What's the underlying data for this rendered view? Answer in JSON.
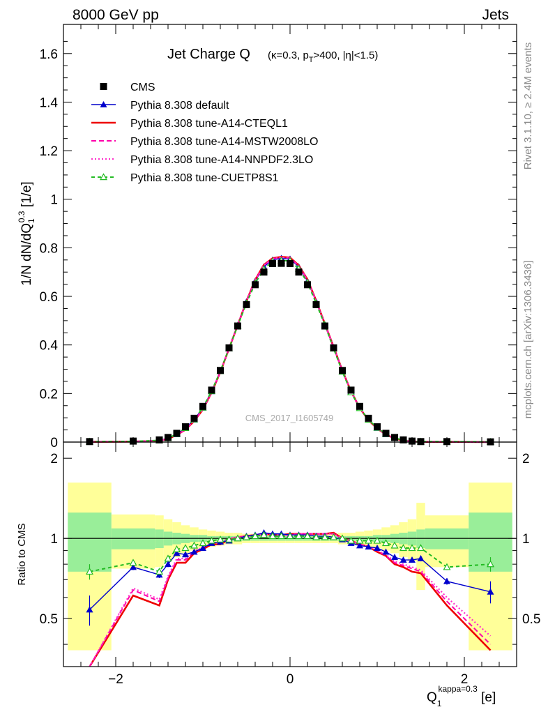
{
  "header": {
    "left": "8000 GeV pp",
    "right": "Jets"
  },
  "title": {
    "main": "Jet Charge Q",
    "cuts": "(κ=0.3, p",
    "cuts_sub": "T",
    "cuts_tail": ">400, |η|<1.5)"
  },
  "side_labels": {
    "rivet": "Rivet 3.1.10, ≥ 2.4M events",
    "mcplots": "mcplots.cern.ch [arXiv:1306.3436]"
  },
  "watermark": "CMS_2017_I1605749",
  "chart_data": [
    {
      "type": "line",
      "panel": "main",
      "ylabel": "1/N dN/dQ1^0.3 [1/e]",
      "ylabel_parts": {
        "pre": "1/N dN/dQ",
        "sub": "1",
        "sup": "0.3",
        "post": " [1/e]"
      },
      "xlim": [
        -2.6,
        2.6
      ],
      "ylim": [
        0,
        1.72
      ],
      "yticks": [
        0,
        0.2,
        0.4,
        0.6,
        0.8,
        1,
        1.2,
        1.4,
        1.6
      ],
      "ytick_labels": [
        "0",
        "0.2",
        "0.4",
        "0.6",
        "0.8",
        "1",
        "1.2",
        "1.4",
        "1.6"
      ],
      "legend_position": "top-left",
      "x": [
        -2.3,
        -1.8,
        -1.5,
        -1.4,
        -1.3,
        -1.2,
        -1.1,
        -1.0,
        -0.9,
        -0.8,
        -0.7,
        -0.6,
        -0.5,
        -0.4,
        -0.3,
        -0.2,
        -0.1,
        0.0,
        0.1,
        0.2,
        0.3,
        0.4,
        0.5,
        0.6,
        0.7,
        0.8,
        0.9,
        1.0,
        1.1,
        1.2,
        1.3,
        1.4,
        1.5,
        1.8,
        2.3
      ],
      "series": [
        {
          "name": "CMS",
          "color": "#000000",
          "style": "square",
          "values": [
            0.002,
            0.004,
            0.009,
            0.019,
            0.036,
            0.063,
            0.098,
            0.147,
            0.214,
            0.295,
            0.388,
            0.478,
            0.566,
            0.648,
            0.7,
            0.735,
            0.736,
            0.735,
            0.7,
            0.648,
            0.566,
            0.478,
            0.388,
            0.295,
            0.214,
            0.147,
            0.098,
            0.063,
            0.036,
            0.019,
            0.009,
            0.004,
            0.002,
            0.002,
            0.001
          ]
        },
        {
          "name": "Pythia 8.308 default",
          "color": "#0000cc",
          "style": "line-triangle",
          "values": [
            0.001,
            0.003,
            0.007,
            0.016,
            0.032,
            0.058,
            0.092,
            0.141,
            0.209,
            0.292,
            0.387,
            0.482,
            0.578,
            0.663,
            0.722,
            0.75,
            0.757,
            0.754,
            0.722,
            0.663,
            0.578,
            0.482,
            0.387,
            0.292,
            0.209,
            0.141,
            0.092,
            0.058,
            0.032,
            0.016,
            0.007,
            0.003,
            0.001,
            0.001,
            0.001
          ]
        },
        {
          "name": "Pythia 8.308 tune-A14-CTEQL1",
          "color": "#ee0000",
          "style": "solid",
          "values": [
            0.001,
            0.002,
            0.005,
            0.013,
            0.029,
            0.051,
            0.086,
            0.134,
            0.204,
            0.288,
            0.385,
            0.482,
            0.58,
            0.668,
            0.73,
            0.757,
            0.763,
            0.76,
            0.728,
            0.67,
            0.582,
            0.487,
            0.392,
            0.295,
            0.209,
            0.14,
            0.09,
            0.056,
            0.031,
            0.015,
            0.006,
            0.003,
            0.001,
            0.001,
            0.0
          ]
        },
        {
          "name": "Pythia 8.308 tune-A14-MSTW2008LO",
          "color": "#ff00aa",
          "style": "dashed",
          "values": [
            0.001,
            0.002,
            0.006,
            0.013,
            0.029,
            0.052,
            0.087,
            0.135,
            0.205,
            0.289,
            0.386,
            0.483,
            0.579,
            0.667,
            0.728,
            0.755,
            0.761,
            0.758,
            0.726,
            0.668,
            0.58,
            0.486,
            0.391,
            0.294,
            0.209,
            0.14,
            0.091,
            0.057,
            0.031,
            0.015,
            0.006,
            0.003,
            0.001,
            0.001,
            0.0
          ]
        },
        {
          "name": "Pythia 8.308 tune-A14-NNPDF2.3LO",
          "color": "#ff33cc",
          "style": "dotted",
          "values": [
            0.001,
            0.002,
            0.006,
            0.013,
            0.029,
            0.052,
            0.087,
            0.135,
            0.205,
            0.289,
            0.386,
            0.483,
            0.579,
            0.667,
            0.728,
            0.755,
            0.761,
            0.758,
            0.726,
            0.668,
            0.58,
            0.486,
            0.391,
            0.294,
            0.209,
            0.14,
            0.091,
            0.057,
            0.031,
            0.015,
            0.006,
            0.003,
            0.001,
            0.001,
            0.0
          ]
        },
        {
          "name": "Pythia 8.308 tune-CUETP8S1",
          "color": "#22bb22",
          "style": "dashed-open-triangle",
          "values": [
            0.002,
            0.003,
            0.007,
            0.016,
            0.033,
            0.058,
            0.093,
            0.142,
            0.21,
            0.292,
            0.386,
            0.479,
            0.571,
            0.654,
            0.712,
            0.744,
            0.748,
            0.746,
            0.714,
            0.657,
            0.571,
            0.482,
            0.385,
            0.29,
            0.205,
            0.14,
            0.092,
            0.059,
            0.033,
            0.017,
            0.008,
            0.004,
            0.002,
            0.002,
            0.001
          ]
        }
      ]
    },
    {
      "type": "line",
      "panel": "ratio",
      "ylabel": "Ratio to CMS",
      "xlabel": "Q1^kappa=0.3 [e]",
      "xlabel_parts": {
        "pre": "Q",
        "sub": "1",
        "sup": "kappa=0.3",
        "post": " [e]"
      },
      "xlim": [
        -2.6,
        2.6
      ],
      "ylim": [
        0.33,
        2.3
      ],
      "yscale": "log",
      "xticks": [
        -2,
        0,
        2
      ],
      "xtick_labels": [
        "−2",
        "0",
        "2"
      ],
      "yticks": [
        0.5,
        1,
        2
      ],
      "ytick_labels": [
        "0.5",
        "1",
        "2"
      ],
      "bands": {
        "x_edges": [
          -2.55,
          -2.05,
          -1.55,
          -1.45,
          -1.35,
          -1.25,
          -1.15,
          -1.05,
          -0.95,
          -0.85,
          -0.75,
          -0.65,
          -0.55,
          -0.45,
          -0.35,
          -0.25,
          -0.15,
          -0.05,
          0.05,
          0.15,
          0.25,
          0.35,
          0.45,
          0.55,
          0.65,
          0.75,
          0.85,
          0.95,
          1.05,
          1.15,
          1.25,
          1.35,
          1.45,
          1.55,
          2.05,
          2.55
        ],
        "outer": [
          0.62,
          0.23,
          0.22,
          0.18,
          0.15,
          0.12,
          0.1,
          0.08,
          0.07,
          0.06,
          0.05,
          0.05,
          0.04,
          0.04,
          0.04,
          0.04,
          0.04,
          0.04,
          0.04,
          0.04,
          0.04,
          0.04,
          0.04,
          0.05,
          0.05,
          0.06,
          0.07,
          0.08,
          0.1,
          0.12,
          0.15,
          0.18,
          0.36,
          0.22,
          0.62
        ],
        "inner": [
          0.25,
          0.09,
          0.08,
          0.06,
          0.05,
          0.04,
          0.03,
          0.03,
          0.02,
          0.02,
          0.02,
          0.02,
          0.02,
          0.02,
          0.02,
          0.02,
          0.02,
          0.02,
          0.02,
          0.02,
          0.02,
          0.02,
          0.02,
          0.02,
          0.02,
          0.02,
          0.02,
          0.03,
          0.03,
          0.04,
          0.05,
          0.06,
          0.08,
          0.09,
          0.25
        ],
        "colors": {
          "outer": "#ffff99",
          "inner": "#99ee99"
        }
      },
      "x": [
        -2.3,
        -1.8,
        -1.5,
        -1.4,
        -1.3,
        -1.2,
        -1.1,
        -1.0,
        -0.9,
        -0.8,
        -0.7,
        -0.6,
        -0.5,
        -0.4,
        -0.3,
        -0.2,
        -0.1,
        0.0,
        0.1,
        0.2,
        0.3,
        0.4,
        0.5,
        0.6,
        0.7,
        0.8,
        0.9,
        1.0,
        1.1,
        1.2,
        1.3,
        1.4,
        1.5,
        1.8,
        2.3
      ],
      "series": [
        {
          "name": "Pythia 8.308 default",
          "color": "#0000cc",
          "style": "line-triangle",
          "values": [
            0.54,
            0.78,
            0.73,
            0.8,
            0.88,
            0.87,
            0.89,
            0.92,
            0.96,
            0.97,
            0.98,
            1.0,
            1.02,
            1.03,
            1.05,
            1.04,
            1.04,
            1.03,
            1.03,
            1.03,
            1.02,
            1.02,
            1.01,
            0.99,
            0.96,
            0.94,
            0.93,
            0.92,
            0.89,
            0.85,
            0.83,
            0.83,
            0.84,
            0.69,
            0.63
          ],
          "errors": [
            0.07,
            0.02,
            0.02,
            0.02,
            0.01,
            0.01,
            0.01,
            0.01,
            0.01,
            0.01,
            0.01,
            0.01,
            0.01,
            0.01,
            0.01,
            0.01,
            0.01,
            0.01,
            0.01,
            0.01,
            0.01,
            0.01,
            0.01,
            0.01,
            0.01,
            0.01,
            0.01,
            0.01,
            0.01,
            0.01,
            0.01,
            0.01,
            0.02,
            0.02,
            0.06
          ]
        },
        {
          "name": "Pythia 8.308 tune-A14-CTEQL1",
          "color": "#ee0000",
          "style": "solid",
          "values": [
            0.3,
            0.61,
            0.56,
            0.7,
            0.81,
            0.81,
            0.88,
            0.91,
            0.95,
            0.95,
            0.99,
            1.01,
            1.02,
            1.03,
            1.04,
            1.03,
            1.03,
            1.04,
            1.04,
            1.04,
            1.04,
            1.04,
            1.05,
            1.0,
            0.98,
            0.95,
            0.93,
            0.89,
            0.86,
            0.8,
            0.78,
            0.75,
            0.74,
            0.56,
            0.38
          ]
        },
        {
          "name": "Pythia 8.308 tune-A14-MSTW2008LO",
          "color": "#ff00aa",
          "style": "dashed",
          "values": [
            0.31,
            0.64,
            0.58,
            0.71,
            0.83,
            0.83,
            0.89,
            0.92,
            0.96,
            0.96,
            0.99,
            1.01,
            1.02,
            1.03,
            1.04,
            1.03,
            1.03,
            1.03,
            1.04,
            1.04,
            1.04,
            1.04,
            1.04,
            1.0,
            0.98,
            0.95,
            0.93,
            0.9,
            0.86,
            0.81,
            0.79,
            0.77,
            0.75,
            0.58,
            0.4
          ]
        },
        {
          "name": "Pythia 8.308 tune-A14-NNPDF2.3LO",
          "color": "#ff33cc",
          "style": "dotted",
          "values": [
            0.32,
            0.65,
            0.59,
            0.72,
            0.84,
            0.84,
            0.9,
            0.92,
            0.96,
            0.97,
            1.0,
            1.01,
            1.02,
            1.03,
            1.04,
            1.03,
            1.03,
            1.03,
            1.04,
            1.04,
            1.04,
            1.04,
            1.04,
            1.0,
            0.98,
            0.95,
            0.93,
            0.9,
            0.87,
            0.82,
            0.8,
            0.78,
            0.76,
            0.6,
            0.43
          ]
        },
        {
          "name": "Pythia 8.308 tune-CUETP8S1",
          "color": "#22bb22",
          "style": "dashed-open-triangle",
          "values": [
            0.75,
            0.81,
            0.75,
            0.84,
            0.91,
            0.92,
            0.94,
            0.96,
            0.98,
            0.99,
            0.99,
            1.0,
            1.01,
            1.02,
            1.03,
            1.02,
            1.02,
            1.02,
            1.02,
            1.02,
            1.01,
            1.01,
            1.01,
            1.0,
            0.98,
            0.98,
            0.98,
            0.98,
            0.96,
            0.94,
            0.92,
            0.92,
            0.92,
            0.78,
            0.8
          ],
          "errors": [
            0.05,
            0.02,
            0.02,
            0.02,
            0.01,
            0.01,
            0.01,
            0.01,
            0.01,
            0.01,
            0.01,
            0.01,
            0.01,
            0.01,
            0.01,
            0.01,
            0.01,
            0.01,
            0.01,
            0.01,
            0.01,
            0.01,
            0.01,
            0.01,
            0.01,
            0.01,
            0.01,
            0.01,
            0.01,
            0.01,
            0.01,
            0.01,
            0.01,
            0.02,
            0.05
          ]
        }
      ]
    }
  ]
}
